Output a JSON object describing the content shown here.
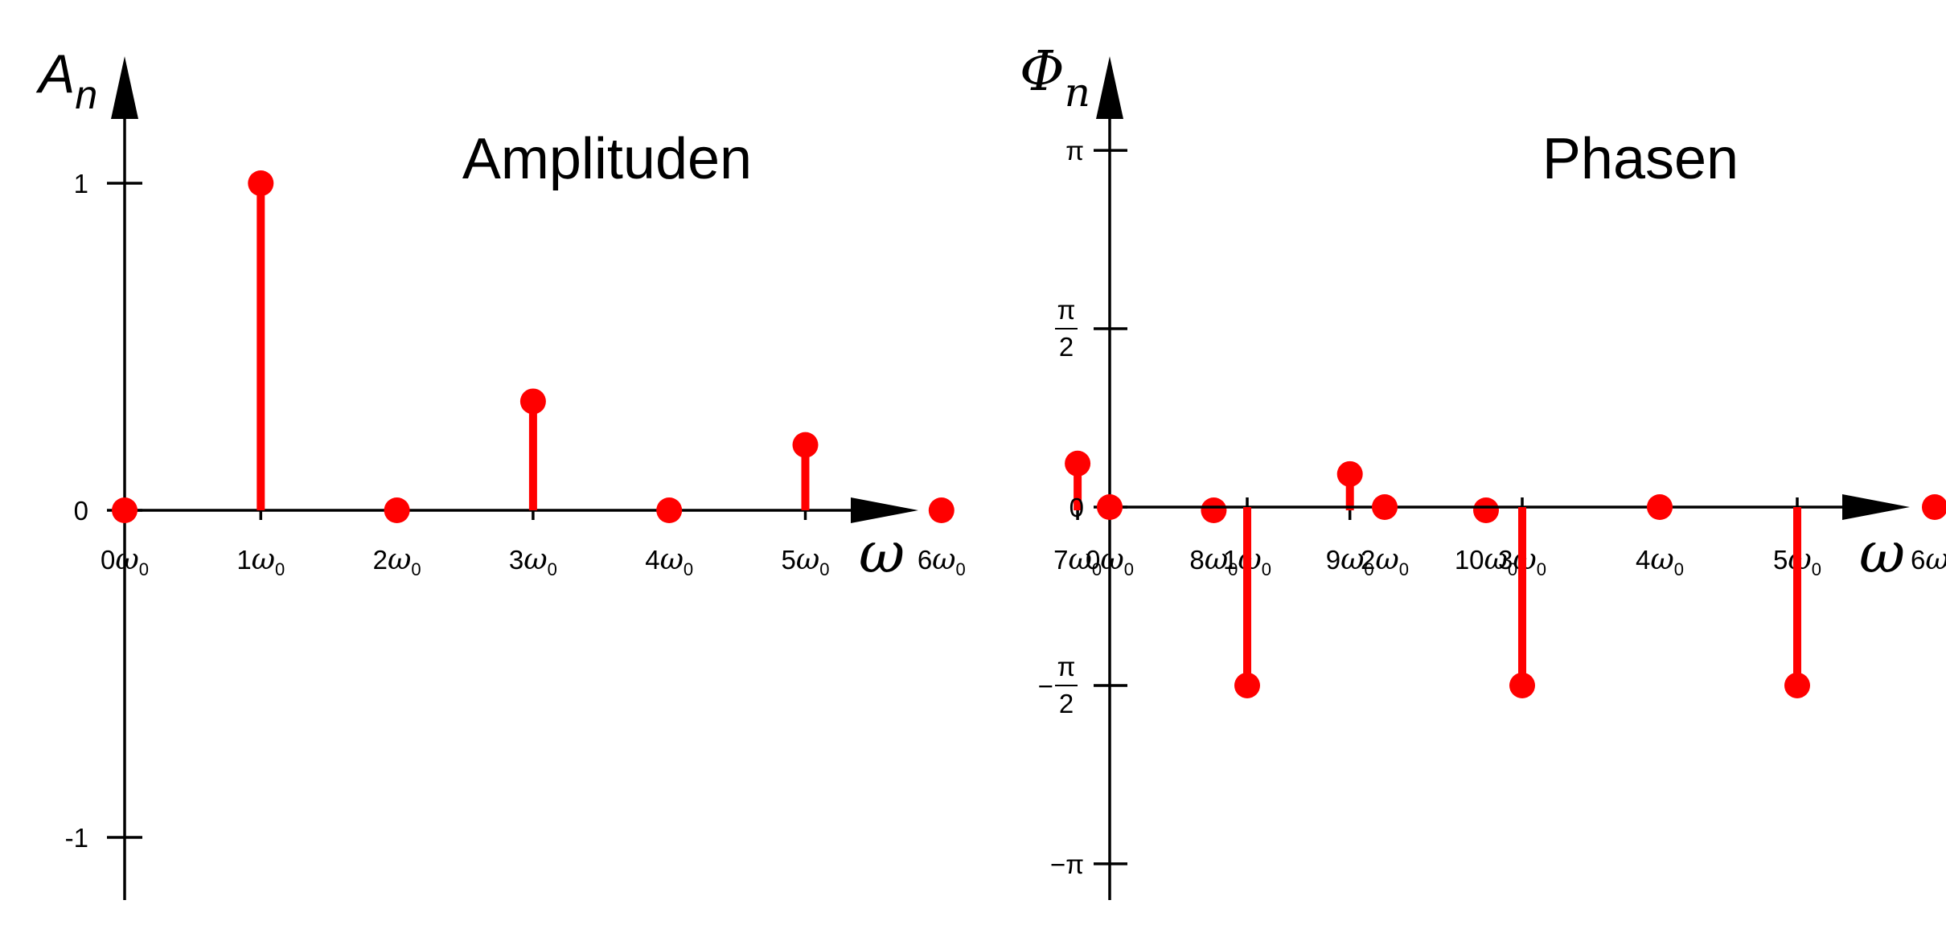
{
  "colors": {
    "stem": "#ff0000",
    "axis": "#000000",
    "background": "#ffffff"
  },
  "chart_data": [
    {
      "type": "stem",
      "title": "Amplituden",
      "ylabel": "A",
      "ylabel_sub": "n",
      "xlabel": "ω",
      "x": [
        0,
        1,
        2,
        3,
        4,
        5,
        6,
        7,
        8,
        9,
        10
      ],
      "x_tick_labels": [
        {
          "num": "0",
          "unit": "ω",
          "sub": "0"
        },
        {
          "num": "1",
          "unit": "ω",
          "sub": "0"
        },
        {
          "num": "2",
          "unit": "ω",
          "sub": "0"
        },
        {
          "num": "3",
          "unit": "ω",
          "sub": "0"
        },
        {
          "num": "4",
          "unit": "ω",
          "sub": "0"
        },
        {
          "num": "5",
          "unit": "ω",
          "sub": "0"
        },
        {
          "num": "6",
          "unit": "ω",
          "sub": "0"
        },
        {
          "num": "7",
          "unit": "ω",
          "sub": "0"
        },
        {
          "num": "8",
          "unit": "ω",
          "sub": "0"
        },
        {
          "num": "9",
          "unit": "ω",
          "sub": "0"
        },
        {
          "num": "10",
          "unit": "ω",
          "sub": "0"
        }
      ],
      "values": [
        0,
        1,
        0,
        0.333,
        0,
        0.2,
        0,
        0.143,
        0,
        0.111,
        0
      ],
      "ylim": [
        -1.2,
        1.2
      ],
      "y_ticks": [
        {
          "value": 1,
          "label": "1"
        },
        {
          "value": 0,
          "label": "0"
        },
        {
          "value": -1,
          "label": "-1"
        }
      ],
      "grid": false
    },
    {
      "type": "stem",
      "title": "Phasen",
      "ylabel": "Φ",
      "ylabel_sub": "n",
      "xlabel": "ω",
      "x": [
        0,
        1,
        2,
        3,
        4,
        5,
        6,
        7,
        8,
        9,
        10
      ],
      "x_tick_labels": [
        {
          "num": "0",
          "unit": "ω",
          "sub": "0"
        },
        {
          "num": "1",
          "unit": "ω",
          "sub": "0"
        },
        {
          "num": "2",
          "unit": "ω",
          "sub": "0"
        },
        {
          "num": "3",
          "unit": "ω",
          "sub": "0"
        },
        {
          "num": "4",
          "unit": "ω",
          "sub": "0"
        },
        {
          "num": "5",
          "unit": "ω",
          "sub": "0"
        },
        {
          "num": "6",
          "unit": "ω",
          "sub": "0"
        },
        {
          "num": "7",
          "unit": "ω",
          "sub": "0"
        },
        {
          "num": "8",
          "unit": "ω",
          "sub": "0"
        },
        {
          "num": "9",
          "unit": "ω",
          "sub": "0"
        },
        {
          "num": "10",
          "unit": "ω",
          "sub": "0"
        }
      ],
      "values": [
        0,
        -1.5708,
        0,
        -1.5708,
        0,
        -1.5708,
        0,
        -1.5708,
        0,
        -1.5708,
        0
      ],
      "ylim": [
        -3.4907,
        3.1416
      ],
      "y_ticks": [
        {
          "value": 3.1416,
          "label": "π",
          "kind": "plain"
        },
        {
          "value": 1.5708,
          "label": "π/2",
          "kind": "frac",
          "sign": "",
          "numer": "π",
          "denom": "2"
        },
        {
          "value": 0,
          "label": "0",
          "kind": "plain"
        },
        {
          "value": -1.5708,
          "label": "−π/2",
          "kind": "frac",
          "sign": "−",
          "numer": "π",
          "denom": "2"
        },
        {
          "value": -3.1416,
          "label": "−π",
          "kind": "plain"
        }
      ],
      "grid": false
    }
  ]
}
